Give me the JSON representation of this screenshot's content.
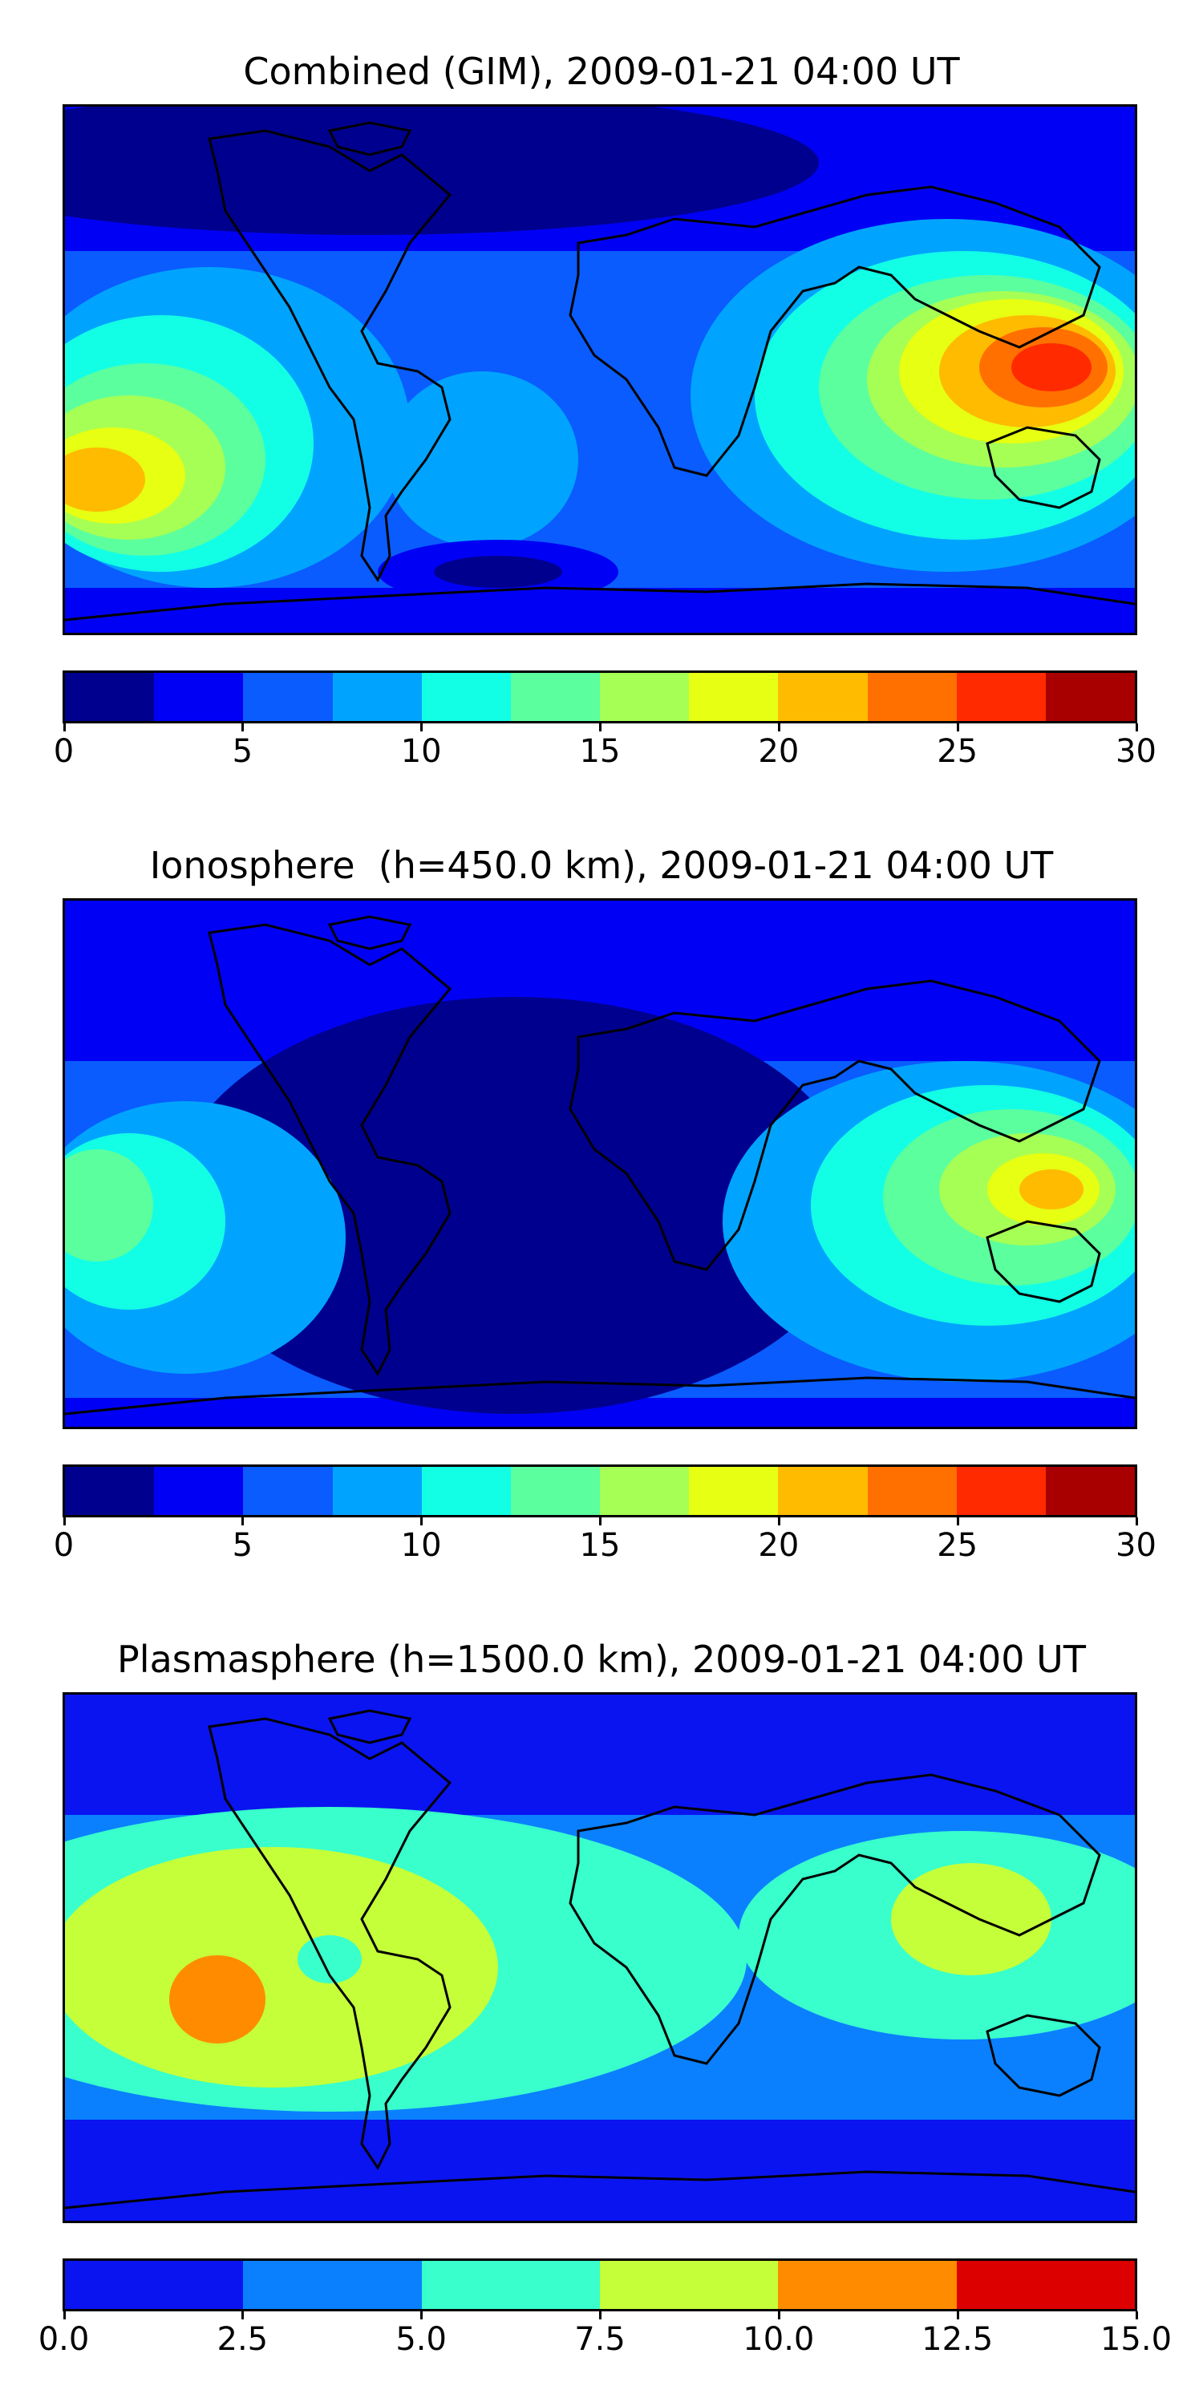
{
  "chart_data": [
    {
      "type": "heatmap",
      "title": "Combined (GIM), 2009-01-21 04:00 UT",
      "colorbar": {
        "ticks": [
          "0",
          "5",
          "10",
          "15",
          "20",
          "25",
          "30"
        ],
        "range": [
          0,
          30
        ],
        "levels": [
          0,
          2.5,
          5,
          7.5,
          10,
          12.5,
          15,
          17.5,
          20,
          22.5,
          25,
          27.5,
          30
        ],
        "colors": [
          "#00008f",
          "#0000f5",
          "#0a5cff",
          "#00a4ff",
          "#12ffe6",
          "#5bff9e",
          "#a6ff55",
          "#e6ff12",
          "#ffbb00",
          "#ff7000",
          "#ff2a00",
          "#a80000"
        ]
      }
    },
    {
      "type": "heatmap",
      "title": "Ionosphere  (h=450.0 km), 2009-01-21 04:00 UT",
      "colorbar": {
        "ticks": [
          "0",
          "5",
          "10",
          "15",
          "20",
          "25",
          "30"
        ],
        "range": [
          0,
          30
        ],
        "levels": [
          0,
          2.5,
          5,
          7.5,
          10,
          12.5,
          15,
          17.5,
          20,
          22.5,
          25,
          27.5,
          30
        ],
        "colors": [
          "#00008f",
          "#0000f5",
          "#0a5cff",
          "#00a4ff",
          "#12ffe6",
          "#5bff9e",
          "#a6ff55",
          "#e6ff12",
          "#ffbb00",
          "#ff7000",
          "#ff2a00",
          "#a80000"
        ]
      }
    },
    {
      "type": "heatmap",
      "title": "Plasmasphere (h=1500.0 km), 2009-01-21 04:00 UT",
      "colorbar": {
        "ticks": [
          "0.0",
          "2.5",
          "5.0",
          "7.5",
          "10.0",
          "12.5",
          "15.0"
        ],
        "range": [
          0,
          15
        ],
        "levels": [
          0,
          2.5,
          5,
          7.5,
          10,
          12.5,
          15
        ],
        "colors": [
          "#0a14f0",
          "#0a80ff",
          "#38ffcc",
          "#c4ff3a",
          "#ff8c00",
          "#dd0000"
        ]
      }
    }
  ]
}
